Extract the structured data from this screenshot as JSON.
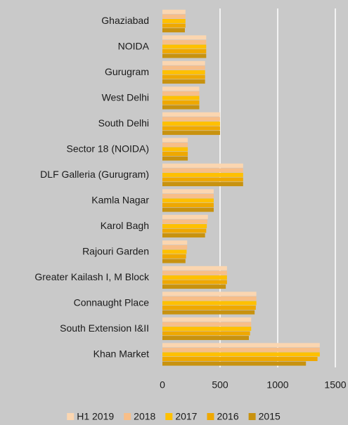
{
  "chart_data": {
    "type": "bar",
    "orientation": "horizontal",
    "categories": [
      "Ghaziabad",
      "NOIDA",
      "Gurugram",
      "West Delhi",
      "South Delhi",
      "Sector 18 (NOIDA)",
      "DLF Galleria (Gurugram)",
      "Kamla Nagar",
      "Karol Bagh",
      "Rajouri Garden",
      "Greater Kailash I, M Block",
      "Connaught Place",
      "South Extension I&II",
      "Khan Market"
    ],
    "series": [
      {
        "name": "H1 2019",
        "color": "#fbd6b0",
        "values": [
          200,
          380,
          370,
          320,
          500,
          220,
          700,
          445,
          395,
          215,
          560,
          815,
          770,
          1365
        ]
      },
      {
        "name": "2018",
        "color": "#f8be88",
        "values": [
          200,
          380,
          370,
          320,
          500,
          220,
          700,
          445,
          390,
          215,
          560,
          815,
          770,
          1365
        ]
      },
      {
        "name": "2017",
        "color": "#ffc000",
        "values": [
          200,
          380,
          370,
          320,
          500,
          220,
          700,
          445,
          385,
          210,
          560,
          815,
          770,
          1365
        ]
      },
      {
        "name": "2016",
        "color": "#efa800",
        "values": [
          200,
          380,
          370,
          320,
          500,
          220,
          700,
          445,
          380,
          205,
          560,
          810,
          760,
          1345
        ]
      },
      {
        "name": "2015",
        "color": "#c8920f",
        "values": [
          195,
          380,
          370,
          320,
          500,
          220,
          700,
          445,
          370,
          200,
          550,
          800,
          750,
          1245
        ]
      }
    ],
    "xlim": [
      0,
      1500
    ],
    "xticks": [
      0,
      500,
      1000,
      1500
    ],
    "grid": true,
    "legend": "bottom"
  }
}
